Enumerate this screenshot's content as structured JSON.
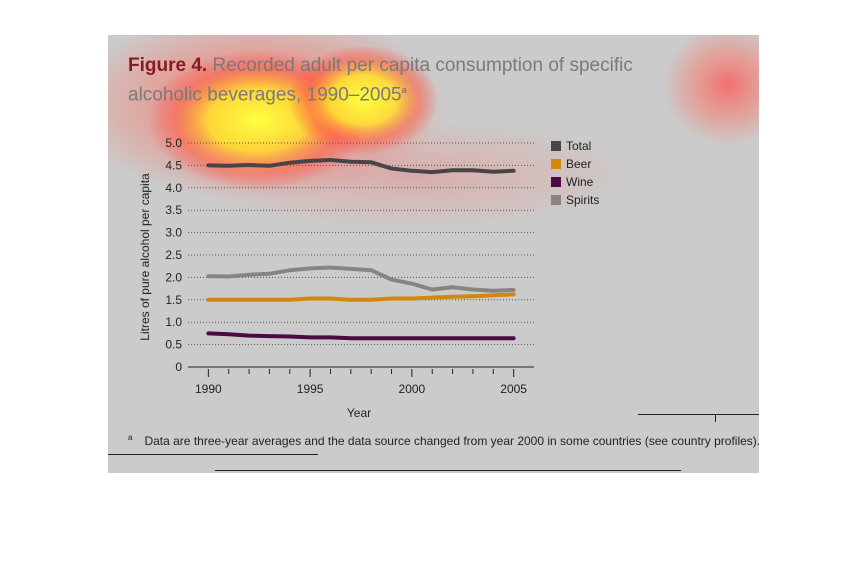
{
  "figure": {
    "label": "Figure 4.",
    "title": "Recorded adult per capita consumption of specific alcoholic beverages, 1990–2005",
    "title_marker": "a",
    "footnote_marker": "a",
    "footnote": "Data are three-year averages and the data source changed from year 2000 in some countries (see country profiles)."
  },
  "colors": {
    "panel": "#cbcbcb",
    "grid": "#555555",
    "axis": "#222222",
    "title_label": "#8a1a22",
    "title_text": "#7a7a7a"
  },
  "chart_data": {
    "type": "line",
    "title": "Recorded adult per capita consumption of specific alcoholic beverages, 1990–2005",
    "xlabel": "Year",
    "ylabel": "Litres of pure alcohol per capita",
    "xlim": [
      1989,
      2006
    ],
    "ylim": [
      0,
      5.0
    ],
    "x_ticks": [
      1990,
      1995,
      2000,
      2005
    ],
    "y_ticks": [
      0,
      0.5,
      1.0,
      1.5,
      2.0,
      2.5,
      3.0,
      3.5,
      4.0,
      4.5,
      5.0
    ],
    "y_tick_labels": [
      "0",
      "0.5",
      "1.0",
      "1.5",
      "2.0",
      "2.5",
      "3.0",
      "3.5",
      "4.0",
      "4.5",
      "5.0"
    ],
    "grid": true,
    "legend_position": "right",
    "x": [
      1990,
      1991,
      1992,
      1993,
      1994,
      1995,
      1996,
      1997,
      1998,
      1999,
      2000,
      2001,
      2002,
      2003,
      2004,
      2005
    ],
    "series": [
      {
        "name": "Total",
        "color": "#4a4448",
        "values": [
          4.5,
          4.49,
          4.51,
          4.49,
          4.56,
          4.6,
          4.62,
          4.58,
          4.57,
          4.43,
          4.38,
          4.35,
          4.39,
          4.39,
          4.36,
          4.38
        ]
      },
      {
        "name": "Beer",
        "color": "#d3870f",
        "values": [
          1.5,
          1.5,
          1.5,
          1.5,
          1.5,
          1.53,
          1.53,
          1.5,
          1.5,
          1.53,
          1.53,
          1.55,
          1.57,
          1.58,
          1.6,
          1.62
        ]
      },
      {
        "name": "Wine",
        "color": "#4a0a44",
        "values": [
          0.75,
          0.73,
          0.7,
          0.69,
          0.68,
          0.66,
          0.66,
          0.64,
          0.64,
          0.64,
          0.64,
          0.64,
          0.64,
          0.64,
          0.64,
          0.64
        ]
      },
      {
        "name": "Spirits",
        "color": "#8a8480",
        "values": [
          2.03,
          2.02,
          2.06,
          2.08,
          2.16,
          2.2,
          2.22,
          2.19,
          2.16,
          1.95,
          1.86,
          1.73,
          1.78,
          1.73,
          1.7,
          1.72
        ]
      }
    ]
  }
}
